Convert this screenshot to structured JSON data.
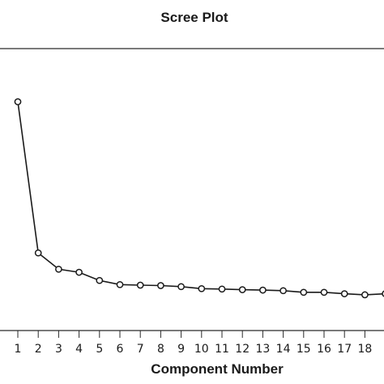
{
  "chart_data": {
    "type": "line",
    "title": "Scree Plot",
    "xlabel": "Component Number",
    "ylabel": "",
    "x": [
      1,
      2,
      3,
      4,
      5,
      6,
      7,
      8,
      9,
      10,
      11,
      12,
      13,
      14,
      15,
      16,
      17,
      18,
      19
    ],
    "tick_labels": [
      "1",
      "2",
      "3",
      "4",
      "5",
      "6",
      "7",
      "8",
      "9",
      "10",
      "11",
      "12",
      "13",
      "14",
      "15",
      "16",
      "17",
      "18"
    ],
    "series": [
      {
        "values": [
          10.4,
          3.0,
          2.2,
          2.05,
          1.65,
          1.45,
          1.42,
          1.4,
          1.35,
          1.25,
          1.23,
          1.2,
          1.18,
          1.15,
          1.07,
          1.07,
          1.0,
          0.95,
          1.0
        ]
      }
    ],
    "ylim": [
      -0.8,
      13.0
    ],
    "grid": false,
    "marker": "open-circle",
    "color": "#1a1a1a"
  }
}
